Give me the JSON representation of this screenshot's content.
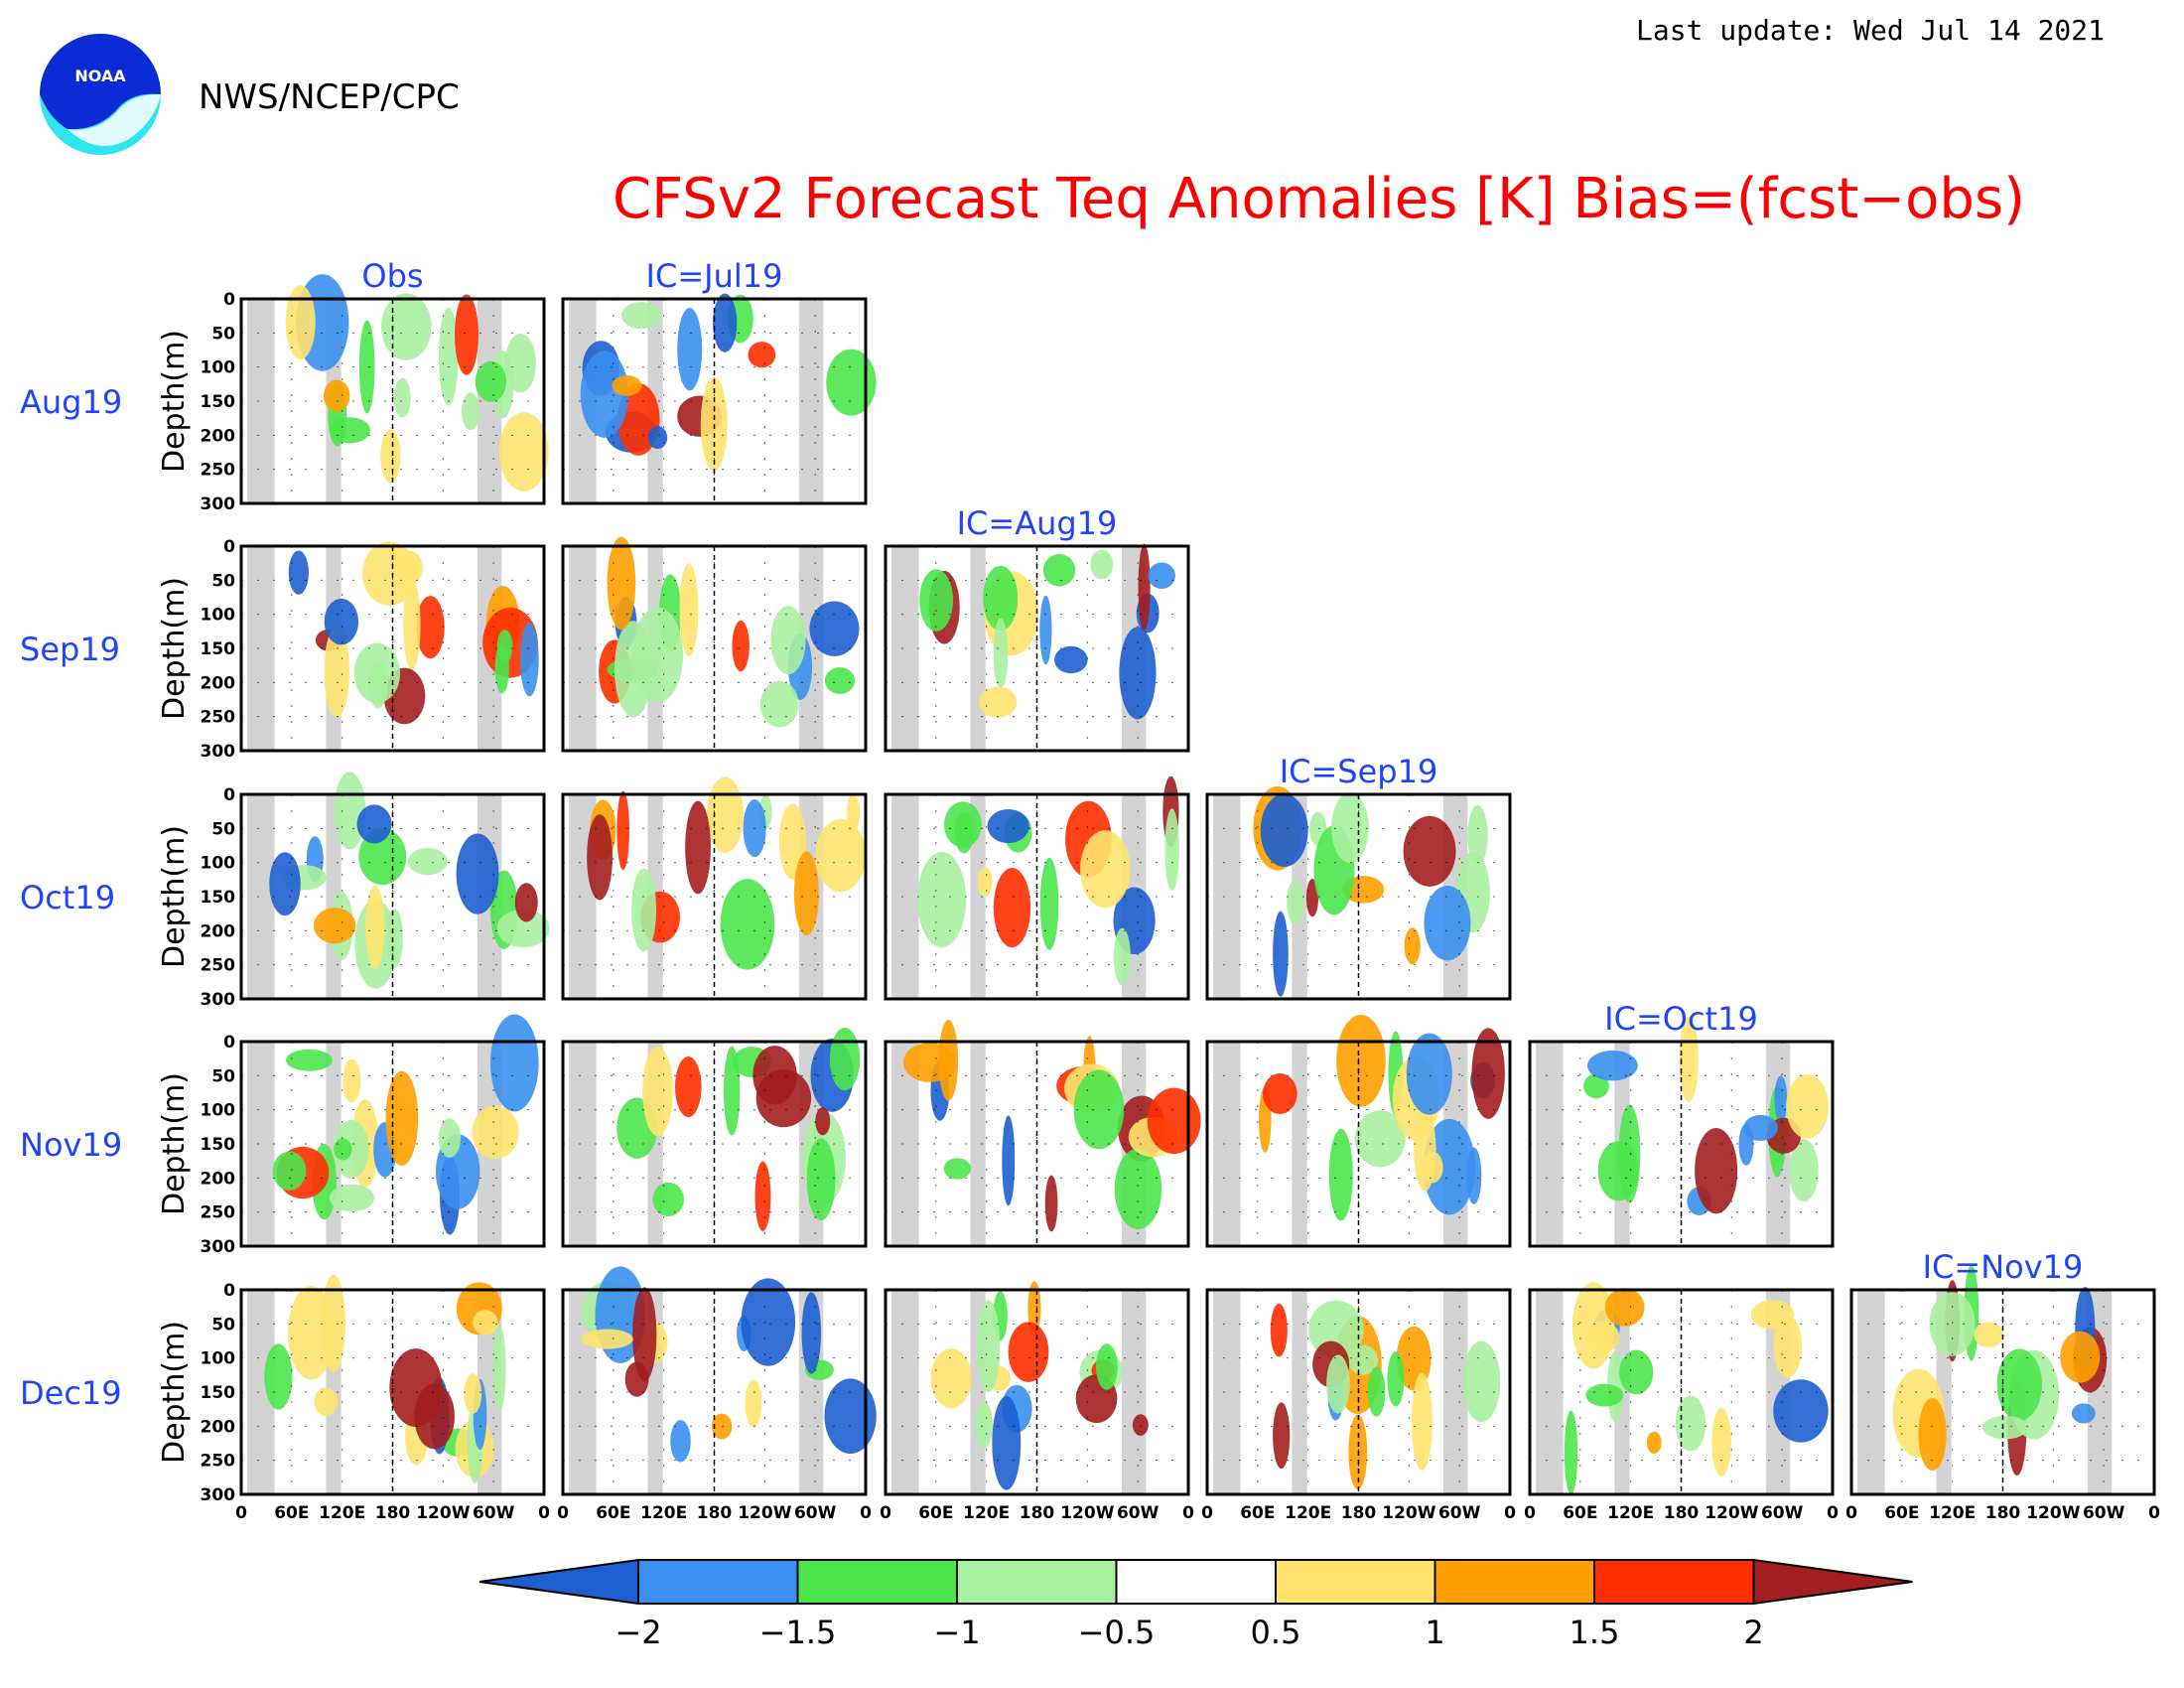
{
  "header": {
    "last_update": "Last update: Wed Jul 14 2021",
    "agency": "NWS/NCEP/CPC",
    "logo_text": "NOAA",
    "title": "CFSv2 Forecast Teq Anomalies [K] Bias=(fcst−obs)"
  },
  "colors": {
    "title": "#ff0000",
    "labels": "#1f44ff",
    "text": "#000000",
    "land_mask": "#d3d3d3"
  },
  "chart_data": {
    "type": "heatmap",
    "title": "CFSv2 Forecast Teq Anomalies [K] Bias=(fcst−obs)",
    "ylabel": "Depth(m)",
    "ylim": [
      300,
      0
    ],
    "yticks": [
      "0",
      "50",
      "100",
      "150",
      "200",
      "250",
      "300"
    ],
    "xticks": [
      "0",
      "60E",
      "120E",
      "180",
      "120W",
      "60W",
      "0"
    ],
    "rows": [
      "Aug19",
      "Sep19",
      "Oct19",
      "Nov19",
      "Dec19"
    ],
    "columns": [
      "Obs",
      "IC=Jul19",
      "IC=Aug19",
      "IC=Sep19",
      "IC=Oct19",
      "IC=Nov19"
    ],
    "grid": true,
    "colorbar": {
      "levels": [
        "−2",
        "−1.5",
        "−1",
        "−0.5",
        "0.5",
        "1",
        "1.5",
        "2"
      ],
      "colors": [
        "#1d5fd0",
        "#3a8ff0",
        "#4be54b",
        "#a9f0a0",
        "#ffffff",
        "#ffe36e",
        "#ffa000",
        "#ff2f00",
        "#a31e1e"
      ]
    }
  }
}
